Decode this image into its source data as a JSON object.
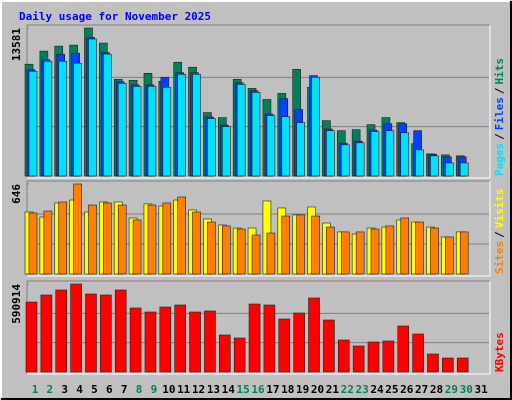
{
  "chart_data": {
    "type": "bar",
    "title": "Daily usage for November 2025",
    "categories": [
      "1",
      "2",
      "3",
      "4",
      "5",
      "6",
      "7",
      "8",
      "9",
      "10",
      "11",
      "12",
      "13",
      "14",
      "15",
      "16",
      "17",
      "18",
      "19",
      "20",
      "21",
      "22",
      "23",
      "24",
      "25",
      "26",
      "27",
      "28",
      "29",
      "30",
      "31"
    ],
    "highlight": [
      0,
      1,
      7,
      8,
      14,
      15,
      21,
      22,
      28,
      29
    ],
    "highlight_color": "#00805c",
    "legend_separator": "/",
    "panels": [
      {
        "ylim": [
          0,
          13581
        ],
        "yticks": [
          13581
        ],
        "series": [
          {
            "name": "Hits",
            "color": "#00805c",
            "values": [
              10260,
              11460,
              11920,
              12010,
              13581,
              12200,
              8870,
              8780,
              9420,
              8690,
              10440,
              9980,
              5820,
              5360,
              8870,
              8040,
              7020,
              7580,
              9790,
              8130,
              5080,
              4160,
              4250,
              4710,
              5360,
              4900,
              2960,
              2030,
              1940,
              1850,
              0
            ]
          },
          {
            "name": "Files",
            "color": "#0040ff",
            "values": [
              9760,
              10680,
              11180,
              11270,
              12720,
              11330,
              8650,
              8370,
              8370,
              9060,
              9480,
              9480,
              5420,
              4680,
              8560,
              7820,
              5690,
              7110,
              6100,
              9210,
              4310,
              3010,
              3200,
              4220,
              4800,
              4800,
              4160,
              2000,
              1760,
              1760,
              0
            ]
          },
          {
            "name": "Pages",
            "color": "#00e0ff",
            "values": [
              9610,
              10530,
              10530,
              10350,
              12570,
              11180,
              8500,
              8220,
              8220,
              8130,
              9330,
              9330,
              5270,
              4530,
              8410,
              7670,
              5540,
              5450,
              4900,
              9060,
              4160,
              2860,
              3050,
              4070,
              4160,
              3970,
              2400,
              1850,
              1200,
              1200,
              0
            ]
          }
        ]
      },
      {
        "ylim": [
          0,
          646
        ],
        "yticks": [
          646
        ],
        "series": [
          {
            "name": "Visits",
            "color": "#ffff00",
            "values": [
              445,
              409,
              510,
              531,
              445,
              517,
              517,
              402,
              503,
              488,
              531,
              460,
              395,
              352,
              330,
              330,
              524,
              474,
              424,
              481,
              366,
              302,
              287,
              330,
              337,
              388,
              373,
              337,
              266,
              302,
              0
            ]
          },
          {
            "name": "Sites",
            "color": "#ff8000",
            "values": [
              438,
              452,
              517,
              646,
              495,
              510,
              495,
              388,
              495,
              510,
              553,
              445,
              373,
              345,
              323,
              280,
              294,
              416,
              424,
              416,
              337,
              302,
              302,
              323,
              345,
              402,
              373,
              330,
              266,
              302,
              0
            ]
          }
        ]
      },
      {
        "ylim": [
          0,
          590914
        ],
        "yticks": [
          590914
        ],
        "series": [
          {
            "name": "KBytes",
            "color": "#ff0000",
            "values": [
              470050,
              517060,
              550630,
              590914,
              523770,
              517060,
              550630,
              429760,
              402900,
              436480,
              449910,
              402900,
              409620,
              248460,
              228310,
              456620,
              449910,
              355900,
              396190,
              496910,
              349180,
              214880,
              174590,
              201450,
              208170,
              308890,
              255170,
              120870,
              94010,
              94010,
              0
            ]
          }
        ]
      }
    ]
  }
}
